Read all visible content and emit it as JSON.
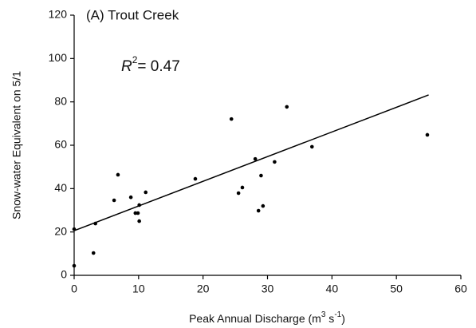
{
  "chart_data": {
    "type": "scatter",
    "title": "(A) Trout Creek",
    "annotation": {
      "variable": "R",
      "exponent": "2",
      "text": "= 0.47"
    },
    "x_label": [
      "Peak Annual Discharge (m",
      "3",
      " s",
      "-1",
      ")"
    ],
    "y_label": "Snow-water Equivalent on 5/1",
    "xlim": [
      0,
      60
    ],
    "ylim": [
      0,
      120
    ],
    "xticks": [
      0,
      10,
      20,
      30,
      40,
      50,
      60
    ],
    "yticks": [
      0,
      20,
      40,
      60,
      80,
      100,
      120
    ],
    "grid": false,
    "series": [
      {
        "color": "#000000",
        "x": [
          0,
          0,
          3,
          3.3,
          6.2,
          6.8,
          8.8,
          9.5,
          9.9,
          10.1,
          10.1,
          11.1,
          18.8,
          24.4,
          25.5,
          26.1,
          28.1,
          28.6,
          29,
          29.3,
          31.1,
          33,
          36.9,
          54.8
        ],
        "values": [
          4.4,
          21.3,
          10.3,
          23.9,
          34.6,
          46.4,
          36,
          28.7,
          28.7,
          32.4,
          25,
          38.3,
          44.5,
          72.1,
          37.9,
          40.5,
          53.7,
          29.8,
          46,
          32,
          52.3,
          77.7,
          59.3,
          64.8
        ]
      }
    ],
    "trendline": {
      "color": "#000000",
      "x": [
        0,
        55
      ],
      "values": [
        20.6,
        83.2
      ]
    }
  }
}
